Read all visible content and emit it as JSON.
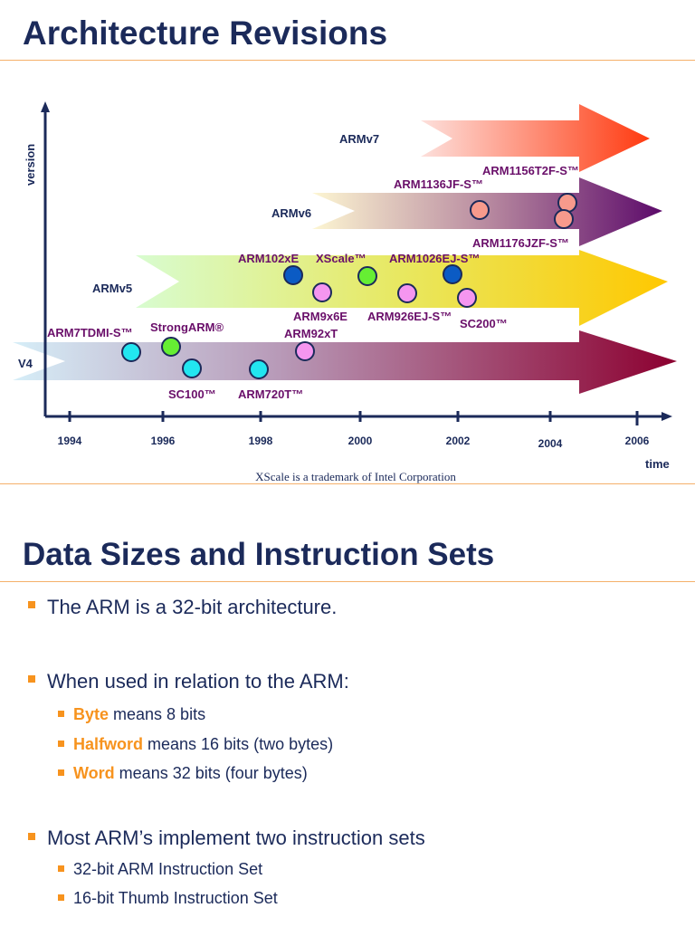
{
  "slide1": {
    "title": "Architecture Revisions",
    "y_axis_label": "version",
    "x_axis_label": "time",
    "years": [
      "1994",
      "1996",
      "1998",
      "2000",
      "2002",
      "2004",
      "2006"
    ],
    "arrows": [
      "ARMv7",
      "ARMv6",
      "ARMv5",
      "V4"
    ],
    "cores": [
      {
        "label": "ARM7TDMI-S™",
        "color": "#22e6f0"
      },
      {
        "label": "StrongARM®",
        "color": "#66ee33"
      },
      {
        "label": "SC100™",
        "color": "#22e6f0"
      },
      {
        "label": "ARM720T™",
        "color": "#22e6f0"
      },
      {
        "label": "ARM92xT",
        "color": "#f596f0"
      },
      {
        "label": "ARM102xE",
        "color": "#0b5bc4"
      },
      {
        "label": "ARM9x6E",
        "color": "#f596f0"
      },
      {
        "label": "XScale™",
        "color": "#66ee33"
      },
      {
        "label": "ARM926EJ-S™",
        "color": "#f596f0"
      },
      {
        "label": "ARM1026EJ-S™",
        "color": "#0b5bc4"
      },
      {
        "label": "SC200™",
        "color": "#f596f0"
      },
      {
        "label": "ARM1136JF-S™",
        "color": "#f79a8c"
      },
      {
        "label": "ARM1156T2F-S™",
        "color": "#f79a8c"
      },
      {
        "label": "ARM1176JZF-S™",
        "color": "#f79a8c"
      }
    ],
    "footnote": "XScale is a trademark of Intel Corporation"
  },
  "slide2": {
    "title": "Data Sizes and Instruction Sets",
    "b1": "The ARM is a 32-bit architecture.",
    "b2": "When used in relation to the ARM:",
    "sub": [
      {
        "term": "Byte",
        "rest": " means 8 bits"
      },
      {
        "term": "Halfword",
        "rest": " means 16 bits (two bytes)"
      },
      {
        "term": "Word",
        "rest": " means 32 bits (four bytes)"
      }
    ],
    "b3": "Most ARM’s implement two instruction sets",
    "sub2": [
      "32-bit ARM Instruction Set",
      "16-bit Thumb Instruction Set"
    ]
  },
  "colors": {
    "title": "#1b2a5a",
    "accent": "#f7931e",
    "core_label": "#6a0f6a"
  }
}
